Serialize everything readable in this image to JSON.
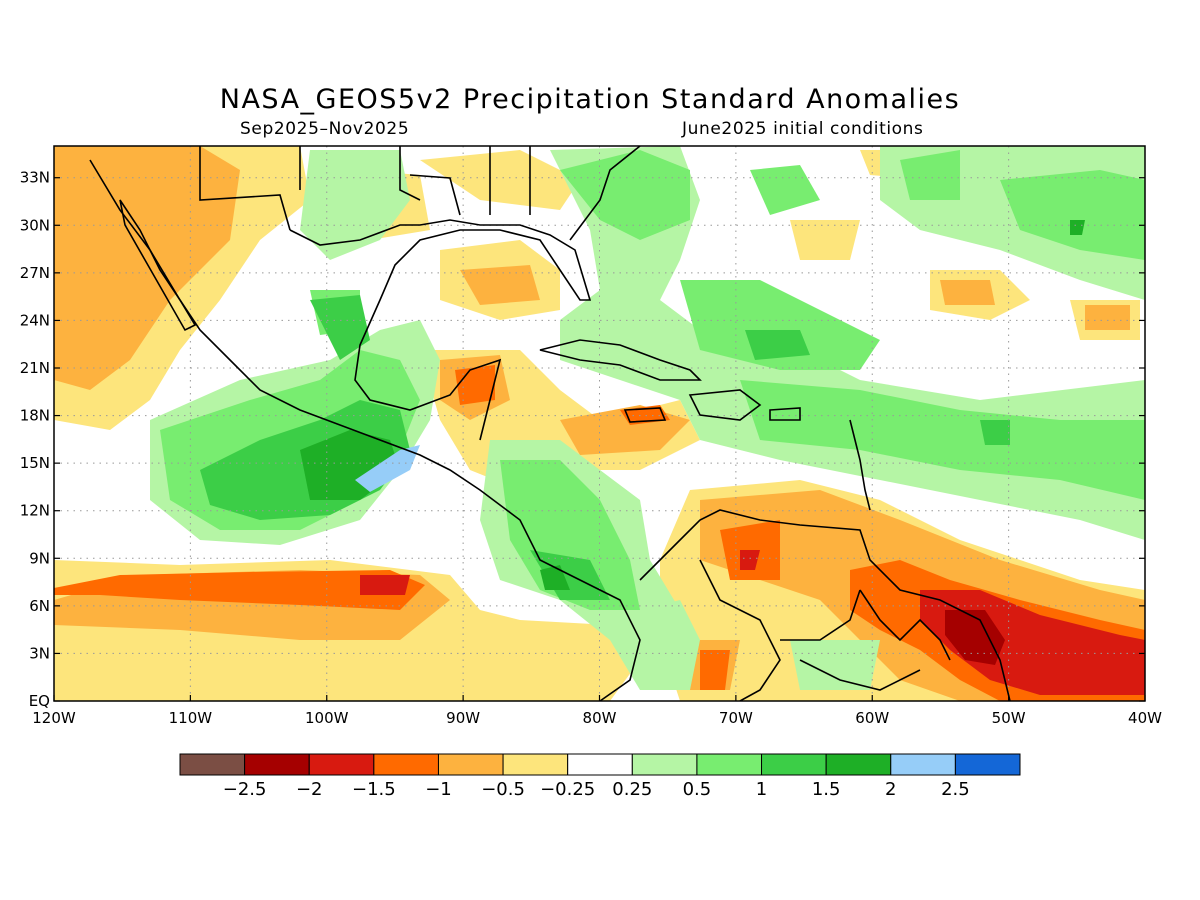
{
  "title": "NASA_GEOS5v2 Precipitation Standard Anomalies",
  "period": "Sep2025–Nov2025",
  "init": "June2025 initial conditions",
  "map": {
    "lon_range": [
      -120,
      -40
    ],
    "lat_range": [
      0,
      35
    ],
    "lon_ticks": [
      {
        "value": -120,
        "label": "120W"
      },
      {
        "value": -110,
        "label": "110W"
      },
      {
        "value": -100,
        "label": "100W"
      },
      {
        "value": -90,
        "label": "90W"
      },
      {
        "value": -80,
        "label": "80W"
      },
      {
        "value": -70,
        "label": "70W"
      },
      {
        "value": -60,
        "label": "60W"
      },
      {
        "value": -50,
        "label": "50W"
      },
      {
        "value": -40,
        "label": "40W"
      }
    ],
    "lat_ticks": [
      {
        "value": 0,
        "label": "EQ"
      },
      {
        "value": 3,
        "label": "3N"
      },
      {
        "value": 6,
        "label": "6N"
      },
      {
        "value": 9,
        "label": "9N"
      },
      {
        "value": 12,
        "label": "12N"
      },
      {
        "value": 15,
        "label": "15N"
      },
      {
        "value": 18,
        "label": "18N"
      },
      {
        "value": 21,
        "label": "21N"
      },
      {
        "value": 24,
        "label": "24N"
      },
      {
        "value": 27,
        "label": "27N"
      },
      {
        "value": 30,
        "label": "30N"
      },
      {
        "value": 33,
        "label": "33N"
      }
    ],
    "grid": true
  },
  "colorbar": {
    "colors": [
      "#7b4e44",
      "#a50000",
      "#d81a10",
      "#ff6a00",
      "#fdb23f",
      "#fde57c",
      "#ffffff",
      "#b5f5a5",
      "#78ed70",
      "#3cce47",
      "#1eaf26",
      "#96cdf8",
      "#1467d7"
    ],
    "labels": [
      "−2.5",
      "−2",
      "−1.5",
      "−1",
      "−0.5",
      "−0.25",
      "0.25",
      "0.5",
      "1",
      "1.5",
      "2",
      "2.5"
    ]
  }
}
